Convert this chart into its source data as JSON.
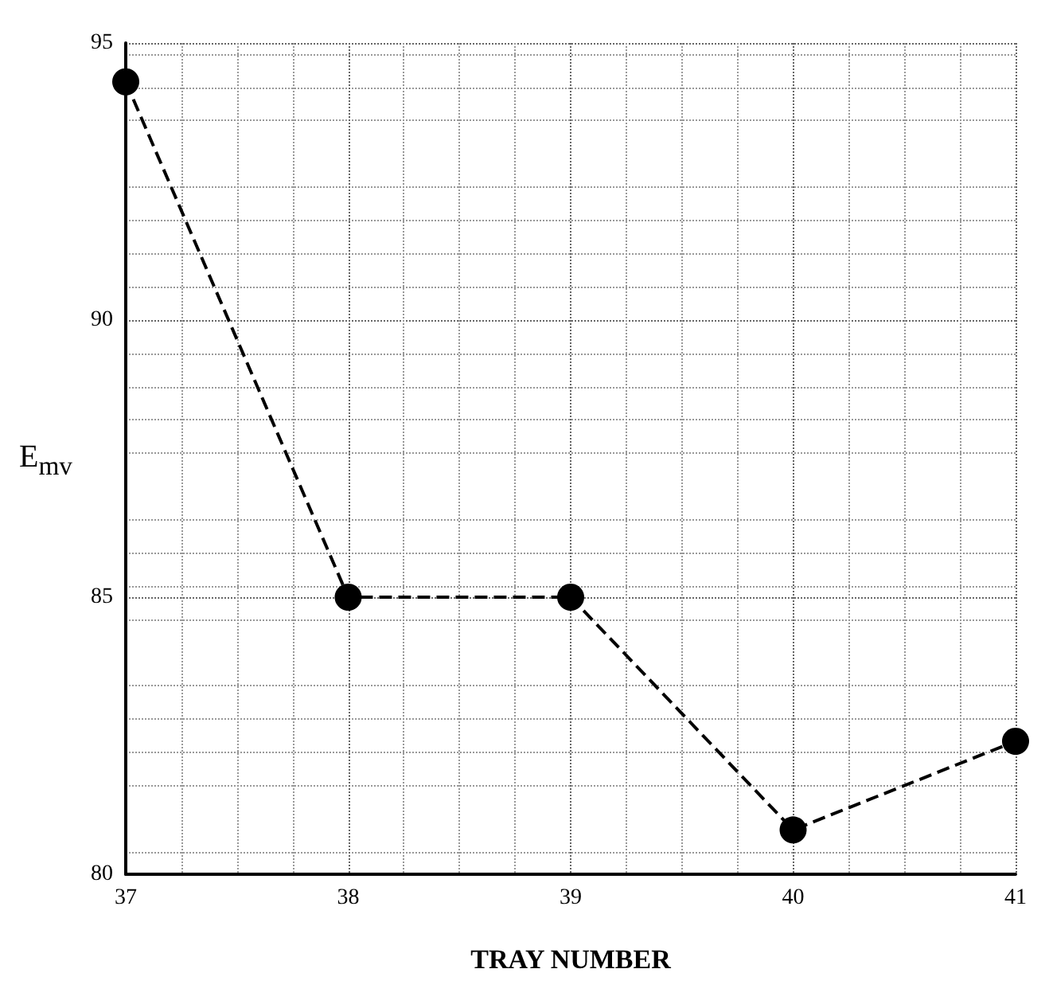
{
  "chart_data": {
    "type": "line",
    "xlabel": "TRAY NUMBER",
    "ylabel": "E$_{mv}$",
    "x": [
      37,
      38,
      39,
      40,
      41
    ],
    "series": [
      {
        "color": "#000000",
        "values": [
          94.3,
          85,
          85,
          80.8,
          82.4
        ]
      }
    ],
    "xlim": [
      37,
      41
    ],
    "xticks": [
      37,
      38,
      39,
      40,
      41
    ],
    "ylim": [
      80,
      95
    ],
    "yticks": [
      80,
      85,
      90,
      95
    ],
    "grid": true,
    "marker": "circle",
    "line_style": "dashed"
  }
}
